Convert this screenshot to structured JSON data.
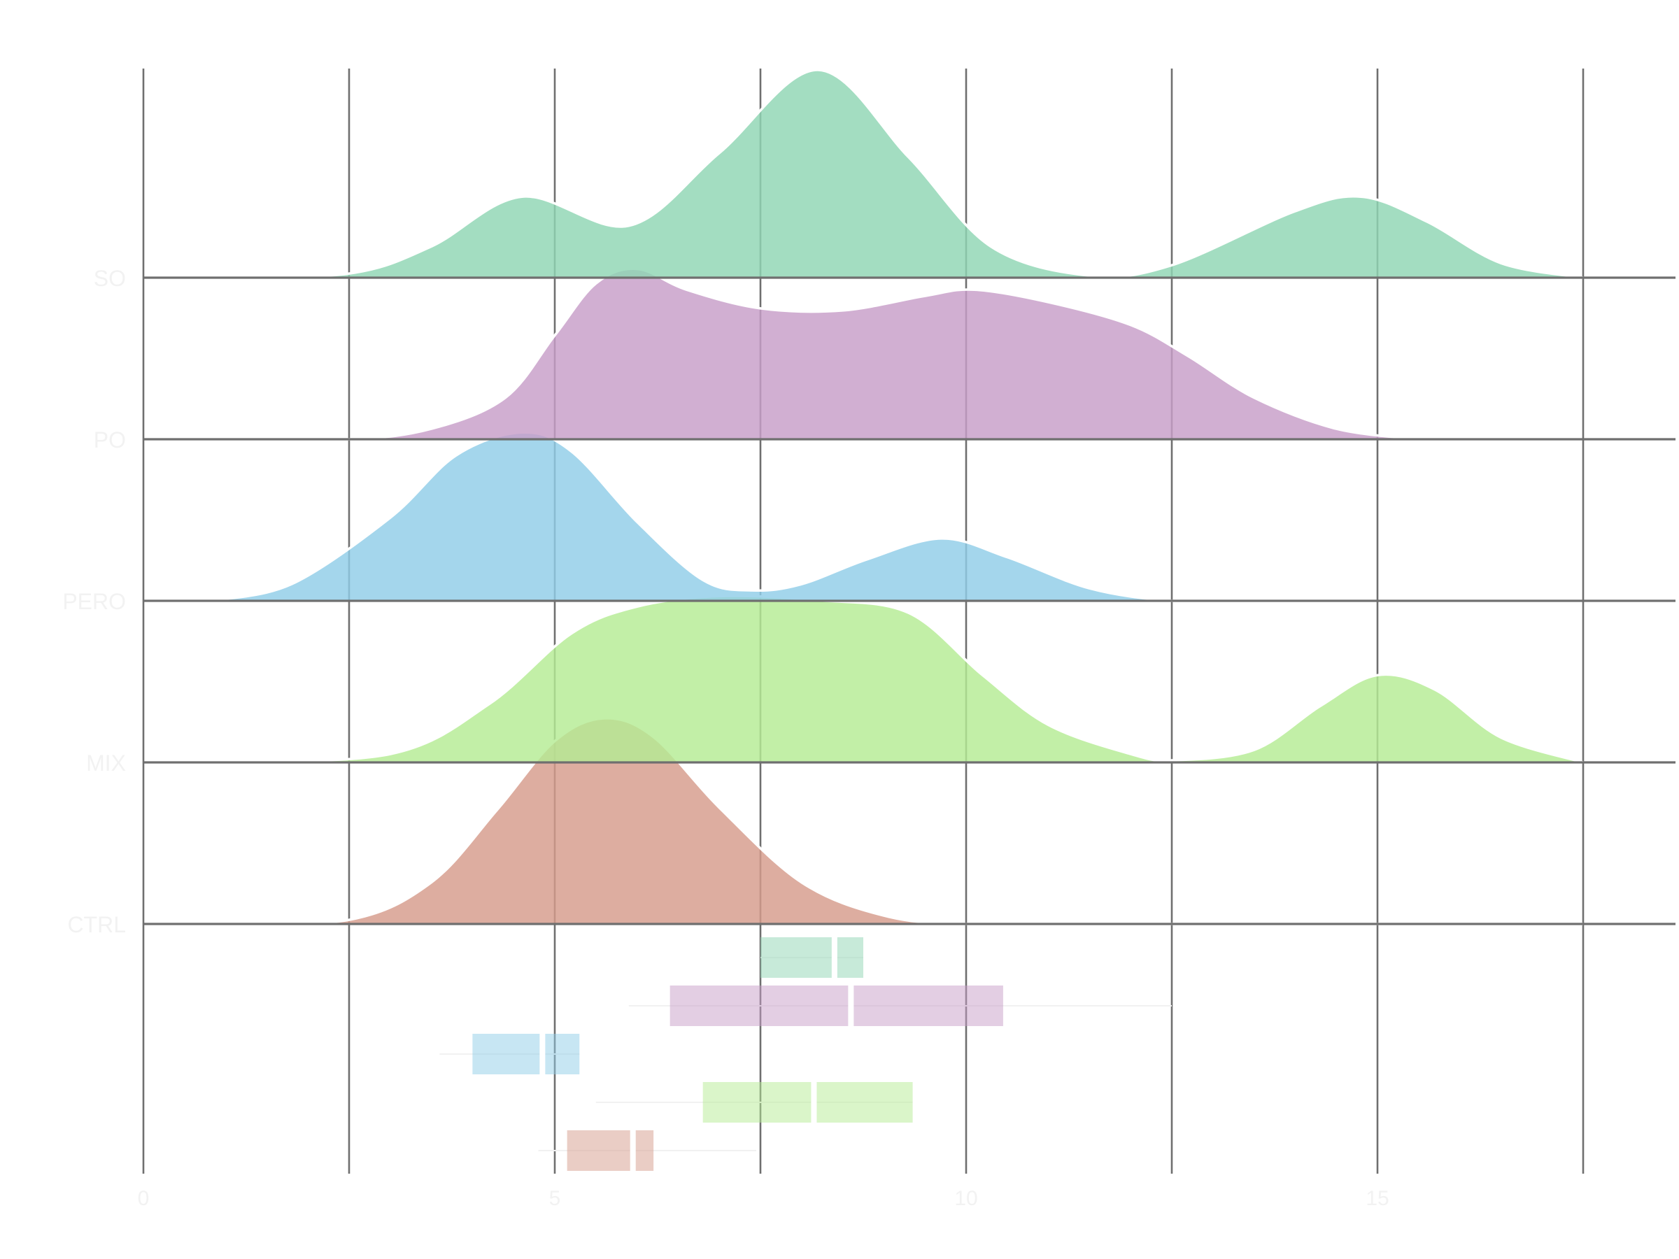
{
  "chart_data": {
    "type": "ridgeline",
    "title": "",
    "xlabel": "",
    "ylabel": "",
    "xlim": [
      -0.3,
      18.5
    ],
    "x_ticks": [
      0,
      5,
      10,
      15
    ],
    "x_tick_labels": [
      "0",
      "5",
      "10",
      "15"
    ],
    "x_gridlines": [
      0,
      2.5,
      5,
      7.5,
      10,
      12.5,
      15,
      17.5
    ],
    "grid": true,
    "legend": "none",
    "series": [
      {
        "name": "SO",
        "color": "#8fd6b3",
        "density_points": [
          [
            0.8,
            0
          ],
          [
            2.5,
            0.02
          ],
          [
            3.5,
            0.15
          ],
          [
            4.6,
            0.39
          ],
          [
            5.9,
            0.25
          ],
          [
            7,
            0.6
          ],
          [
            8.2,
            1.0
          ],
          [
            9.3,
            0.58
          ],
          [
            10.3,
            0.15
          ],
          [
            11.5,
            0.01
          ],
          [
            12.5,
            0.06
          ],
          [
            14,
            0.32
          ],
          [
            14.8,
            0.39
          ],
          [
            15.6,
            0.27
          ],
          [
            16.5,
            0.07
          ],
          [
            17.5,
            0
          ]
        ],
        "box": {
          "whisker_low": 7.5,
          "q1": 7.5,
          "median": 8.4,
          "q3": 8.75,
          "whisker_high": 8.75
        }
      },
      {
        "name": "PO",
        "color": "#c79dc8",
        "density_points": [
          [
            0.8,
            0
          ],
          [
            2.5,
            0
          ],
          [
            3.5,
            0.05
          ],
          [
            4.4,
            0.2
          ],
          [
            5,
            0.5
          ],
          [
            5.5,
            0.75
          ],
          [
            6,
            0.82
          ],
          [
            6.6,
            0.72
          ],
          [
            7.5,
            0.63
          ],
          [
            8.5,
            0.62
          ],
          [
            9.5,
            0.69
          ],
          [
            10.1,
            0.72
          ],
          [
            11,
            0.66
          ],
          [
            12,
            0.55
          ],
          [
            12.7,
            0.4
          ],
          [
            13.5,
            0.2
          ],
          [
            14.5,
            0.05
          ],
          [
            15.5,
            0
          ]
        ],
        "box": {
          "whisker_low": 5.9,
          "q1": 6.4,
          "median": 8.6,
          "q3": 10.45,
          "whisker_high": 12.5
        }
      },
      {
        "name": "PERO",
        "color": "#90cde8",
        "density_points": [
          [
            0.8,
            0
          ],
          [
            1.8,
            0.08
          ],
          [
            3,
            0.4
          ],
          [
            3.8,
            0.7
          ],
          [
            4.6,
            0.81
          ],
          [
            5.2,
            0.72
          ],
          [
            6,
            0.38
          ],
          [
            6.8,
            0.1
          ],
          [
            7.4,
            0.05
          ],
          [
            8,
            0.08
          ],
          [
            8.8,
            0.2
          ],
          [
            9.7,
            0.3
          ],
          [
            10.5,
            0.21
          ],
          [
            11.5,
            0.06
          ],
          [
            12.5,
            0
          ],
          [
            13.5,
            0
          ]
        ],
        "box": {
          "whisker_low": 3.6,
          "q1": 4.0,
          "median": 4.85,
          "q3": 5.3,
          "whisker_high": 5.3
        }
      },
      {
        "name": "MIX",
        "color": "#b5ec94",
        "density_points": [
          [
            0.8,
            0
          ],
          [
            3,
            0.04
          ],
          [
            4.2,
            0.28
          ],
          [
            5.2,
            0.62
          ],
          [
            6,
            0.75
          ],
          [
            7,
            0.8
          ],
          [
            8.2,
            0.78
          ],
          [
            9.3,
            0.72
          ],
          [
            10.2,
            0.42
          ],
          [
            11,
            0.18
          ],
          [
            12,
            0.04
          ],
          [
            12.5,
            0.01
          ],
          [
            13.5,
            0.06
          ],
          [
            14.3,
            0.27
          ],
          [
            15,
            0.42
          ],
          [
            15.7,
            0.35
          ],
          [
            16.5,
            0.12
          ],
          [
            17.5,
            0
          ]
        ],
        "box": {
          "whisker_low": 5.5,
          "q1": 6.8,
          "median": 8.15,
          "q3": 9.35,
          "whisker_high": 9.35
        }
      },
      {
        "name": "CTRL",
        "color": "#d59b8b",
        "density_points": [
          [
            0.8,
            0
          ],
          [
            2.5,
            0.02
          ],
          [
            3.5,
            0.2
          ],
          [
            4.3,
            0.55
          ],
          [
            5,
            0.88
          ],
          [
            5.6,
            0.99
          ],
          [
            6.2,
            0.9
          ],
          [
            7,
            0.56
          ],
          [
            8,
            0.2
          ],
          [
            9,
            0.04
          ],
          [
            10,
            0
          ],
          [
            12,
            0
          ],
          [
            14,
            0
          ],
          [
            17.5,
            0
          ]
        ],
        "box": {
          "whisker_low": 4.8,
          "q1": 5.15,
          "median": 5.95,
          "q3": 6.2,
          "whisker_high": 7.45
        }
      }
    ]
  }
}
